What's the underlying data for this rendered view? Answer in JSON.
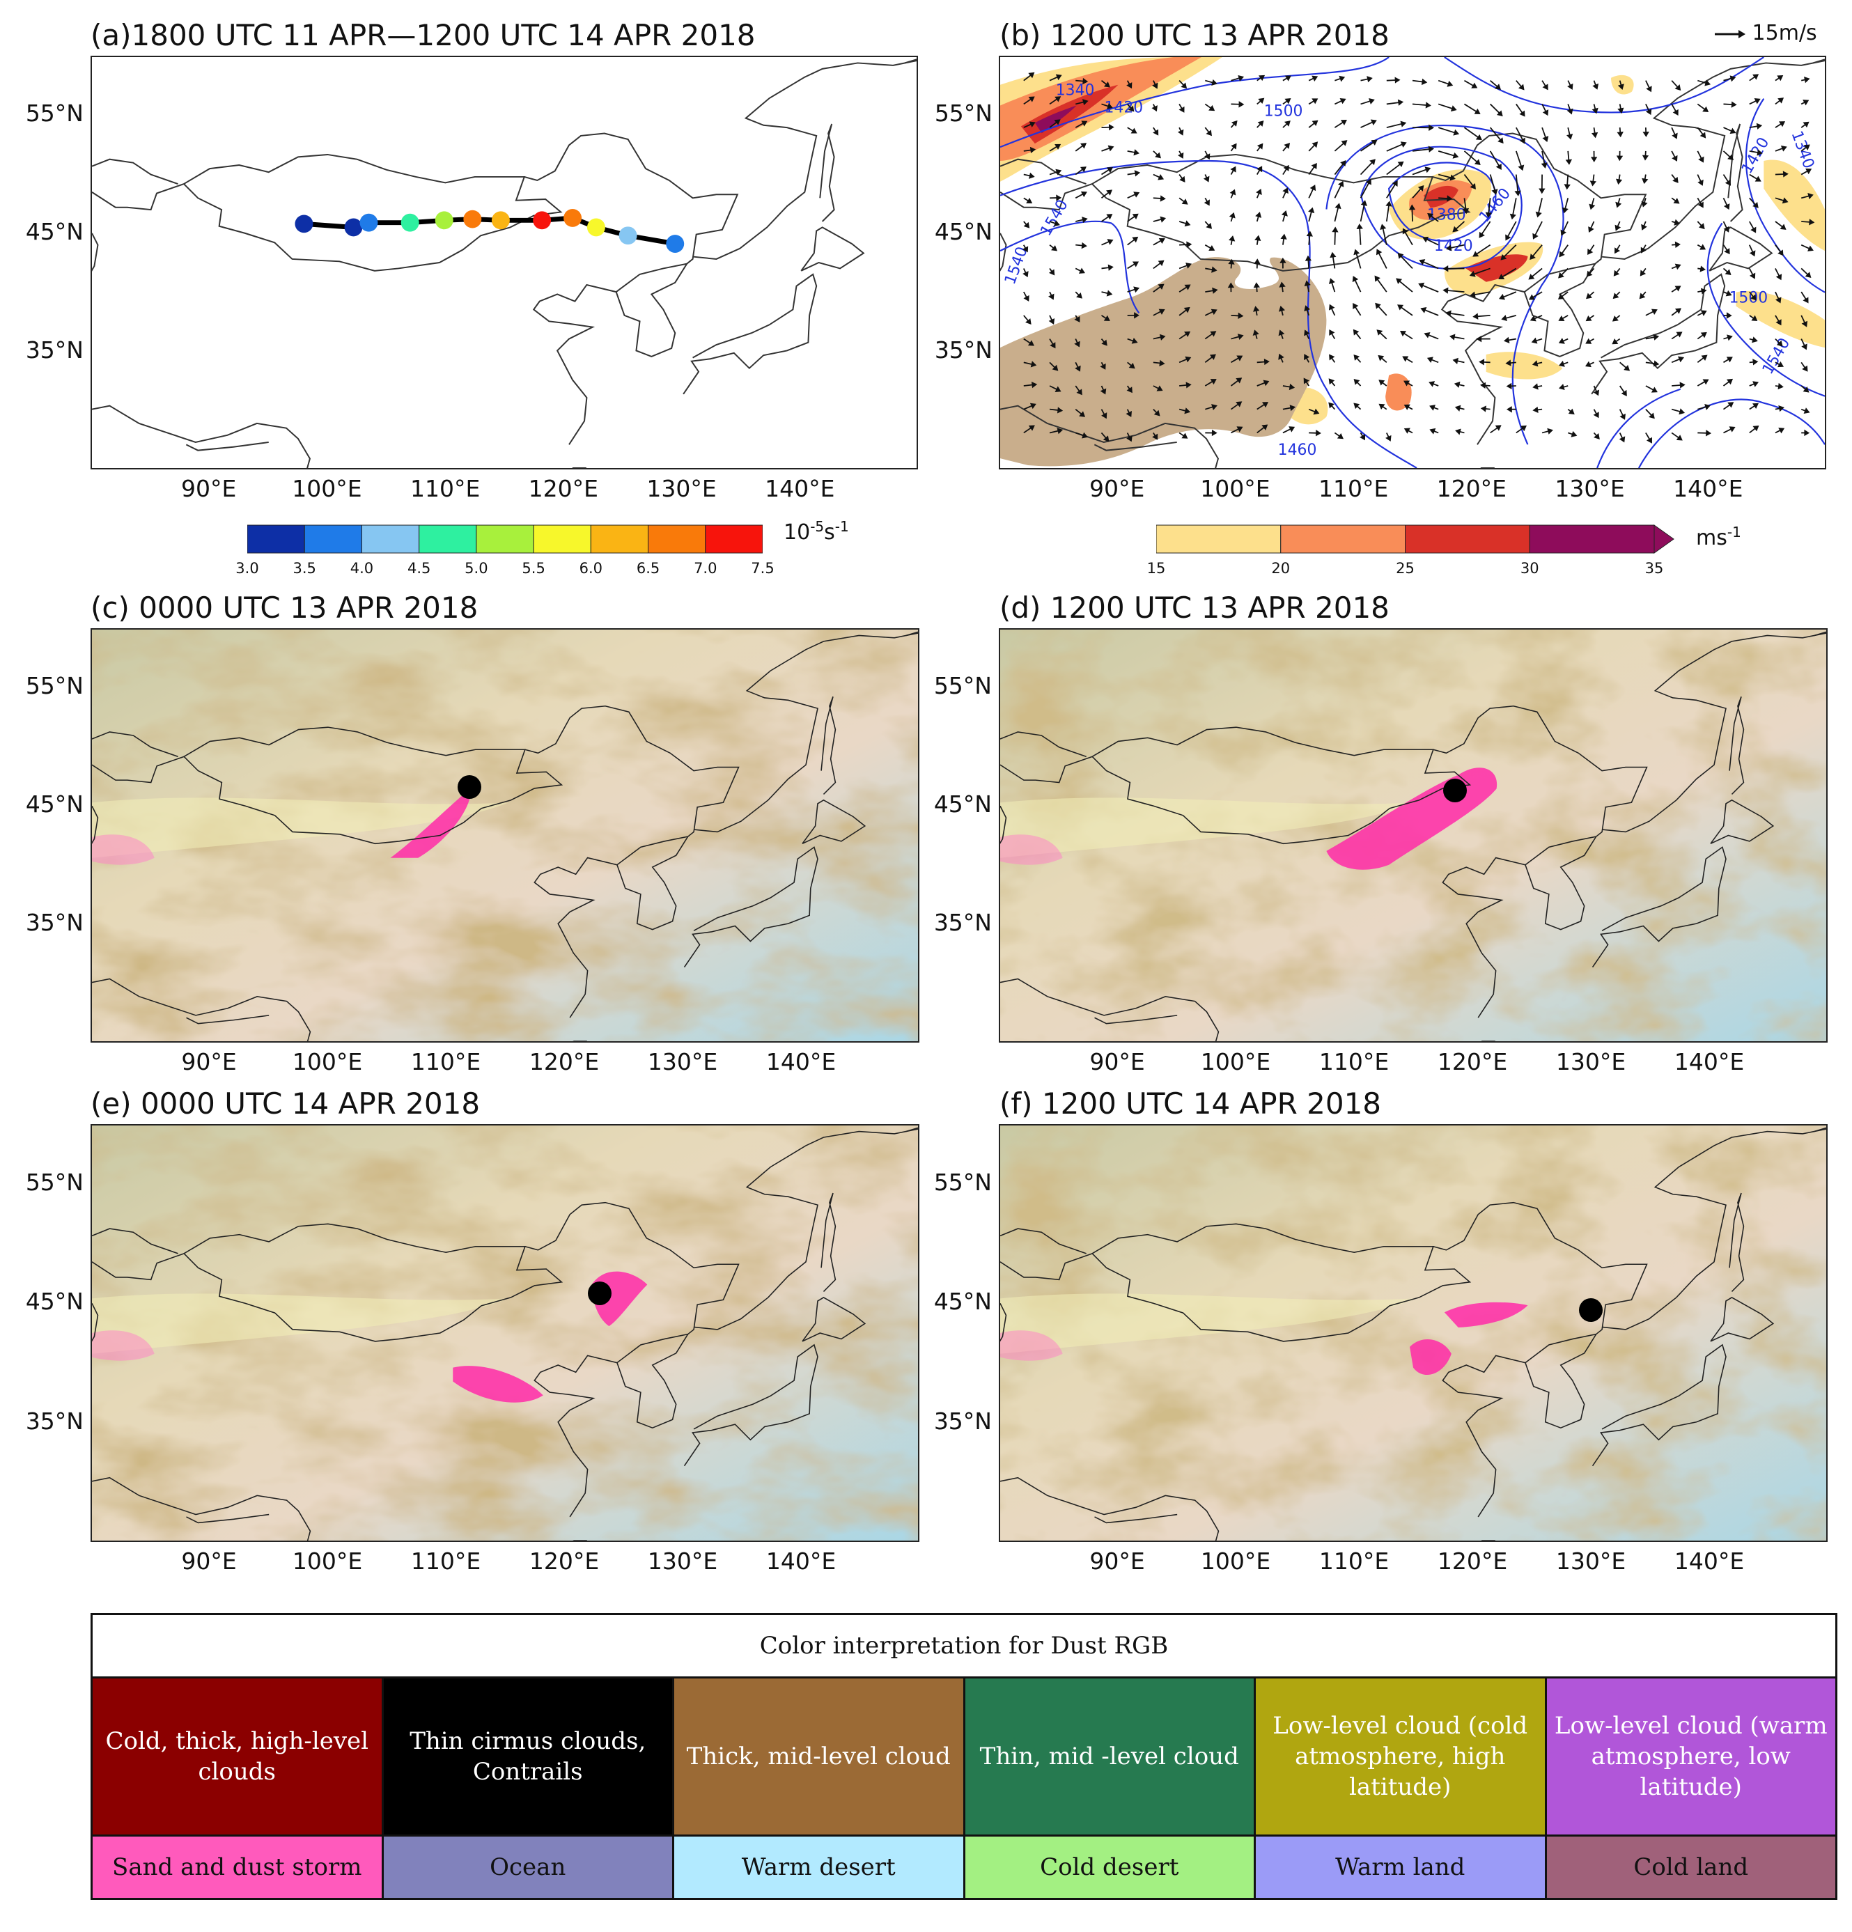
{
  "panels": {
    "a": {
      "title": "(a)1800 UTC 11 APR—1200 UTC 14 APR 2018"
    },
    "b": {
      "title": "(b) 1200 UTC 13 APR 2018",
      "wind_ref": "15m/s",
      "contour_labels": [
        "1340",
        "1420",
        "1500",
        "1540",
        "1380",
        "1420",
        "1460",
        "1420",
        "1500",
        "1540",
        "1460",
        "1340",
        "1540"
      ]
    },
    "c": {
      "title": "(c) 0000 UTC 13 APR 2018"
    },
    "d": {
      "title": "(d) 1200 UTC 13 APR 2018"
    },
    "e": {
      "title": "(e) 0000 UTC 14 APR 2018"
    },
    "f": {
      "title": "(f) 1200 UTC 14 APR 2018"
    }
  },
  "axes": {
    "lat_labels": [
      "55°N",
      "45°N",
      "35°N"
    ],
    "lon_labels": [
      "90°E",
      "100°E",
      "110°E",
      "120°E",
      "130°E",
      "140°E"
    ],
    "lon_values": [
      90,
      100,
      110,
      120,
      130,
      140
    ],
    "lat_values": [
      55,
      45,
      35
    ],
    "lon_range": [
      80,
      150
    ],
    "lat_range": [
      25,
      60
    ]
  },
  "colorbar_a": {
    "ticks": [
      "3.0",
      "3.5",
      "4.0",
      "4.5",
      "5.0",
      "5.5",
      "6.0",
      "6.5",
      "7.0",
      "7.5"
    ],
    "colors": [
      "#0d2fa6",
      "#1f7be8",
      "#86c6f2",
      "#2ef0a0",
      "#a8f03c",
      "#f7f72b",
      "#fab414",
      "#f97a0a",
      "#f7140c"
    ],
    "unit_base": "10",
    "unit_exp1": "-5",
    "unit_mid": "s",
    "unit_exp2": "-1"
  },
  "colorbar_b": {
    "ticks": [
      "15",
      "20",
      "25",
      "30",
      "35"
    ],
    "colors": [
      "#fde08c",
      "#f98d58",
      "#d93128",
      "#8e0c5b"
    ],
    "unit_base": "ms",
    "unit_exp": "-1"
  },
  "track": {
    "points": [
      {
        "lon": 98.0,
        "lat": 45.8,
        "value": 3.2
      },
      {
        "lon": 102.2,
        "lat": 45.5,
        "value": 3.3
      },
      {
        "lon": 103.5,
        "lat": 45.9,
        "value": 3.8
      },
      {
        "lon": 107.0,
        "lat": 45.9,
        "value": 4.7
      },
      {
        "lon": 109.9,
        "lat": 46.1,
        "value": 5.3
      },
      {
        "lon": 112.3,
        "lat": 46.2,
        "value": 6.7
      },
      {
        "lon": 114.7,
        "lat": 46.1,
        "value": 6.2
      },
      {
        "lon": 118.2,
        "lat": 46.1,
        "value": 7.3
      },
      {
        "lon": 120.8,
        "lat": 46.3,
        "value": 6.8
      },
      {
        "lon": 122.8,
        "lat": 45.5,
        "value": 5.8
      },
      {
        "lon": 125.5,
        "lat": 44.8,
        "value": 4.2
      },
      {
        "lon": 129.5,
        "lat": 44.1,
        "value": 3.7
      }
    ]
  },
  "cyclone_centers": {
    "c": {
      "lon": 112.0,
      "lat": 46.6
    },
    "d": {
      "lon": 118.5,
      "lat": 46.3
    },
    "e": {
      "lon": 123.0,
      "lat": 45.8
    },
    "f": {
      "lon": 130.0,
      "lat": 44.4
    }
  },
  "legend": {
    "header": "Color interpretation for Dust RGB",
    "row1": [
      {
        "label": "Cold, thick, high-level clouds",
        "bg": "#8b0000",
        "fg": "#ffffff"
      },
      {
        "label": "Thin cirmus clouds, Contrails",
        "bg": "#000000",
        "fg": "#ffffff"
      },
      {
        "label": "Thick, mid-level cloud",
        "bg": "#9b6a35",
        "fg": "#ffffff"
      },
      {
        "label": "Thin, mid -level cloud",
        "bg": "#267a50",
        "fg": "#ffffff"
      },
      {
        "label": "Low-level cloud (cold atmosphere, high latitude)",
        "bg": "#b0a610",
        "fg": "#ffffff"
      },
      {
        "label": "Low-level cloud (warm atmosphere, low latitude)",
        "bg": "#b156d9",
        "fg": "#ffffff"
      }
    ],
    "row2": [
      {
        "label": "Sand and dust storm",
        "bg": "#ff5abc",
        "fg": "#111111"
      },
      {
        "label": "Ocean",
        "bg": "#8182bc",
        "fg": "#111111"
      },
      {
        "label": "Warm desert",
        "bg": "#b2eaff",
        "fg": "#111111"
      },
      {
        "label": "Cold desert",
        "bg": "#a3f082",
        "fg": "#111111"
      },
      {
        "label": "Warm land",
        "bg": "#9b9bf7",
        "fg": "#111111"
      },
      {
        "label": "Cold land",
        "bg": "#a0617a",
        "fg": "#111111"
      }
    ]
  }
}
